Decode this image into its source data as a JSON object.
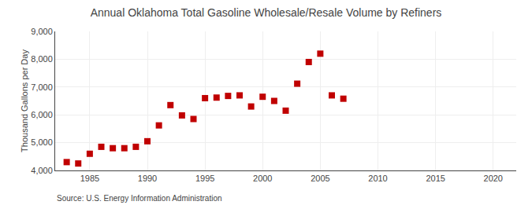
{
  "chart_data": {
    "type": "scatter",
    "title": "Annual Oklahoma Total Gasoline Wholesale/Resale Volume by Refiners",
    "ylabel": "Thousand Gallons per Day",
    "annotations": [
      "Source: U.S. Energy Information Administration"
    ],
    "x": [
      1983,
      1984,
      1985,
      1986,
      1987,
      1988,
      1989,
      1990,
      1991,
      1992,
      1993,
      1994,
      1995,
      1996,
      1997,
      1998,
      1999,
      2000,
      2001,
      2002,
      2003,
      2004,
      2005,
      2006,
      2007
    ],
    "values": [
      4300,
      4250,
      4600,
      4850,
      4800,
      4800,
      4850,
      5050,
      5620,
      6350,
      5980,
      5850,
      6600,
      6620,
      6680,
      6700,
      6300,
      6650,
      6500,
      6150,
      7120,
      7900,
      8200,
      6700,
      6580
    ],
    "color": "#C00000",
    "marker": "square",
    "xlim": [
      1982,
      2022
    ],
    "xticks": [
      1985,
      1990,
      1995,
      2000,
      2005,
      2010,
      2015,
      2020
    ],
    "ylim": [
      4000,
      9000
    ],
    "yticks": [
      {
        "value": 4000,
        "label": "4,000"
      },
      {
        "value": 5000,
        "label": "5,000"
      },
      {
        "value": 6000,
        "label": "6,000"
      },
      {
        "value": 7000,
        "label": "7,000"
      },
      {
        "value": 8000,
        "label": "8,000"
      },
      {
        "value": 9000,
        "label": "9,000"
      }
    ],
    "grid": true
  }
}
